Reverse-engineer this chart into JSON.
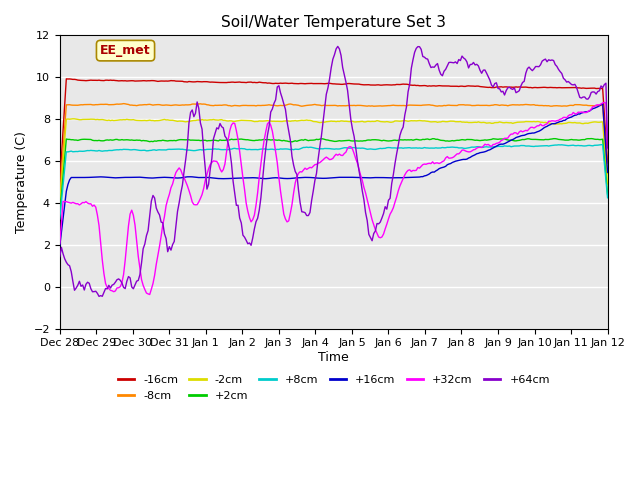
{
  "title": "Soil/Water Temperature Set 3",
  "xlabel": "Time",
  "ylabel": "Temperature (C)",
  "ylim": [
    -2,
    12
  ],
  "yticks": [
    -2,
    0,
    2,
    4,
    6,
    8,
    10,
    12
  ],
  "x_labels": [
    "Dec 28",
    "Dec 29",
    "Dec 30",
    "Dec 31",
    "Jan 1",
    "Jan 2",
    "Jan 3",
    "Jan 4",
    "Jan 5",
    "Jan 6",
    "Jan 7",
    "Jan 8",
    "Jan 9",
    "Jan 10",
    "Jan 11",
    "Jan 12"
  ],
  "watermark": "EE_met",
  "legend": [
    {
      "label": "-16cm",
      "color": "#cc0000"
    },
    {
      "label": "-8cm",
      "color": "#ff8800"
    },
    {
      "label": "-2cm",
      "color": "#dddd00"
    },
    {
      "label": "+2cm",
      "color": "#00cc00"
    },
    {
      "label": "+8cm",
      "color": "#00cccc"
    },
    {
      "label": "+16cm",
      "color": "#0000cc"
    },
    {
      "label": "+32cm",
      "color": "#ff00ff"
    },
    {
      "label": "+64cm",
      "color": "#8800cc"
    }
  ],
  "bg_color": "#ffffff",
  "plot_bg": "#e8e8e8",
  "grid_color": "#ffffff",
  "n_points": 336
}
